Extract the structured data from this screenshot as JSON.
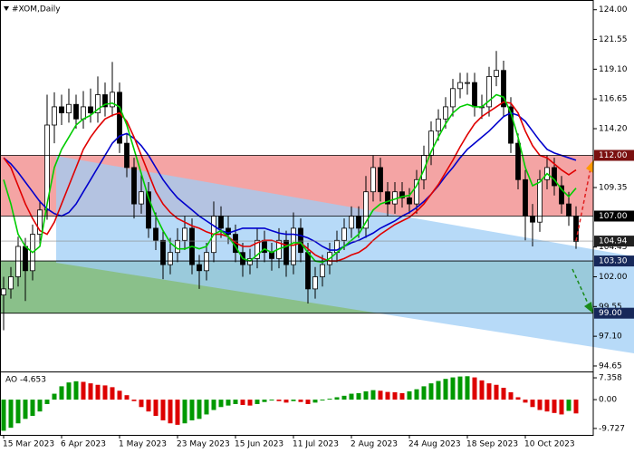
{
  "chart_data": [
    {
      "type": "candlestick",
      "title": "#XOM,Daily",
      "categories": [
        "15 Mar 2023",
        null,
        null,
        null,
        null,
        null,
        null,
        null,
        "6 Apr 2023",
        null,
        null,
        null,
        null,
        null,
        null,
        null,
        "1 May 2023",
        null,
        null,
        null,
        null,
        null,
        null,
        null,
        "23 May 2023",
        null,
        null,
        null,
        null,
        null,
        null,
        null,
        "15 Jun 2023",
        null,
        null,
        null,
        null,
        null,
        null,
        null,
        "11 Jul 2023",
        null,
        null,
        null,
        null,
        null,
        null,
        null,
        "2 Aug 2023",
        null,
        null,
        null,
        null,
        null,
        null,
        null,
        "24 Aug 2023",
        null,
        null,
        null,
        null,
        null,
        null,
        null,
        "18 Sep 2023",
        null,
        null,
        null,
        null,
        null,
        null,
        null,
        "10 Oct 2023",
        null,
        null,
        null,
        null,
        null,
        null,
        null
      ],
      "open": [
        100.5,
        101.0,
        102.0,
        104.5,
        102.5,
        105.5,
        107.5,
        114.5,
        116.0,
        115.5,
        116.2,
        115.0,
        116.0,
        115.5,
        117.0,
        116.0,
        117.2,
        113.0,
        111.0,
        108.0,
        109.0,
        106.0,
        105.0,
        103.0,
        104.0,
        105.0,
        106.0,
        103.0,
        102.5,
        104.0,
        107.0,
        106.0,
        105.5,
        104.0,
        103.0,
        103.5,
        105.0,
        104.0,
        103.5,
        105.0,
        103.0,
        106.0,
        104.0,
        101.0,
        102.0,
        103.0,
        104.0,
        105.0,
        106.0,
        107.0,
        106.0,
        109.0,
        111.0,
        109.0,
        108.0,
        109.0,
        108.5,
        108.0,
        110.0,
        112.0,
        114.0,
        115.0,
        116.0,
        117.5,
        118.0,
        118.0,
        116.0,
        116.0,
        118.5,
        119.0,
        116.0,
        113.0,
        110.0,
        107.0,
        106.5,
        110.0,
        111.0,
        109.5,
        108.0,
        107.0
      ],
      "high": [
        102.0,
        102.8,
        105.3,
        105.2,
        106.3,
        108.3,
        117.0,
        117.2,
        117.0,
        117.5,
        117.0,
        117.3,
        117.5,
        118.5,
        118.0,
        119.7,
        118.0,
        113.8,
        111.8,
        110.5,
        109.8,
        107.3,
        105.8,
        105.2,
        106.0,
        107.0,
        106.8,
        103.8,
        104.8,
        108.2,
        107.8,
        107.0,
        106.3,
        104.8,
        104.3,
        106.0,
        105.8,
        104.8,
        106.0,
        105.8,
        107.3,
        106.8,
        104.8,
        102.8,
        103.8,
        104.8,
        105.8,
        106.8,
        107.8,
        107.8,
        110.3,
        112.0,
        111.8,
        109.8,
        109.8,
        109.8,
        109.3,
        110.8,
        112.8,
        114.8,
        115.8,
        116.8,
        118.3,
        118.8,
        118.8,
        118.8,
        117.0,
        119.3,
        120.6,
        119.8,
        116.8,
        113.8,
        110.8,
        108.0,
        110.8,
        112.0,
        111.8,
        110.3,
        109.0,
        107.8
      ],
      "low": [
        97.6,
        100.2,
        101.2,
        100.0,
        101.7,
        104.7,
        106.7,
        113.0,
        114.5,
        114.7,
        114.2,
        114.2,
        114.7,
        114.7,
        115.2,
        115.2,
        112.2,
        110.2,
        106.8,
        107.2,
        105.2,
        104.2,
        101.8,
        102.2,
        103.2,
        104.2,
        102.2,
        101.0,
        101.7,
        103.2,
        105.2,
        104.7,
        103.2,
        102.0,
        102.2,
        102.7,
        103.2,
        102.5,
        102.7,
        102.0,
        102.2,
        103.2,
        99.8,
        100.2,
        101.2,
        102.2,
        103.2,
        104.2,
        105.2,
        105.2,
        105.2,
        108.2,
        108.2,
        107.0,
        107.2,
        107.7,
        107.2,
        107.2,
        109.2,
        111.2,
        113.2,
        114.2,
        115.2,
        116.7,
        117.0,
        115.2,
        115.0,
        115.2,
        117.7,
        115.2,
        112.2,
        109.2,
        105.0,
        104.5,
        105.7,
        109.2,
        108.7,
        107.2,
        106.2,
        104.3
      ],
      "close": [
        101.0,
        102.0,
        104.5,
        102.5,
        105.5,
        107.5,
        114.5,
        116.0,
        115.5,
        116.2,
        115.0,
        116.0,
        115.5,
        117.0,
        116.0,
        117.2,
        113.0,
        111.0,
        108.0,
        109.0,
        106.0,
        105.0,
        103.0,
        104.0,
        105.0,
        106.0,
        103.0,
        102.5,
        104.0,
        107.0,
        106.0,
        105.5,
        104.0,
        103.0,
        103.5,
        105.0,
        104.0,
        103.5,
        105.0,
        103.0,
        106.0,
        104.0,
        101.0,
        102.0,
        103.0,
        104.0,
        105.0,
        106.0,
        107.0,
        106.0,
        109.0,
        111.0,
        109.0,
        108.0,
        109.0,
        108.5,
        108.0,
        110.0,
        112.0,
        114.0,
        115.0,
        116.0,
        117.5,
        118.0,
        118.0,
        116.0,
        116.0,
        118.5,
        119.0,
        116.0,
        113.0,
        110.0,
        107.0,
        106.5,
        110.0,
        111.0,
        109.5,
        108.0,
        107.0,
        104.9
      ],
      "up_color": "#ffffff",
      "down_color": "#000000",
      "lines": [
        {
          "color": "#0000cc",
          "values": [
            111.8,
            111.3,
            110.6,
            109.8,
            109.0,
            108.2,
            107.6,
            107.2,
            107.0,
            107.3,
            108.0,
            109.0,
            110.0,
            111.0,
            112.0,
            113.0,
            113.6,
            113.8,
            113.4,
            112.8,
            112.0,
            111.0,
            110.0,
            109.2,
            108.5,
            108.0,
            107.5,
            107.0,
            106.6,
            106.2,
            105.8,
            105.6,
            105.8,
            106.0,
            106.0,
            106.0,
            106.0,
            105.8,
            105.6,
            105.5,
            105.5,
            105.4,
            105.2,
            104.9,
            104.5,
            104.2,
            104.2,
            104.5,
            104.8,
            105.0,
            105.3,
            105.6,
            106.0,
            106.3,
            106.6,
            107.0,
            107.3,
            107.7,
            108.2,
            108.8,
            109.5,
            110.3,
            111.0,
            111.8,
            112.5,
            113.0,
            113.5,
            114.0,
            114.6,
            115.2,
            115.5,
            115.3,
            114.8,
            114.0,
            113.2,
            112.5,
            112.2,
            112.0,
            111.8,
            111.6
          ]
        },
        {
          "color": "#e00000",
          "values": [
            111.8,
            111.0,
            109.5,
            108.0,
            106.8,
            105.8,
            105.5,
            106.5,
            108.0,
            109.5,
            111.0,
            112.5,
            113.5,
            114.3,
            115.0,
            115.3,
            115.5,
            114.8,
            113.5,
            112.0,
            110.5,
            109.0,
            108.0,
            107.3,
            106.8,
            106.5,
            106.2,
            106.0,
            105.7,
            105.5,
            105.5,
            105.3,
            104.8,
            104.5,
            104.5,
            104.8,
            105.0,
            105.0,
            104.8,
            104.6,
            104.6,
            104.8,
            104.3,
            103.8,
            103.5,
            103.3,
            103.3,
            103.5,
            103.8,
            104.0,
            104.4,
            105.0,
            105.5,
            105.9,
            106.3,
            106.6,
            106.9,
            107.4,
            108.0,
            108.8,
            109.6,
            110.6,
            111.6,
            112.7,
            113.7,
            114.6,
            115.2,
            115.6,
            116.0,
            116.4,
            116.3,
            115.5,
            114.0,
            112.8,
            112.0,
            111.8,
            111.3,
            110.8,
            110.4,
            110.8
          ]
        },
        {
          "color": "#00cc00",
          "values": [
            110.0,
            108.0,
            105.5,
            104.5,
            104.0,
            104.5,
            108.0,
            111.0,
            112.5,
            113.5,
            114.5,
            115.0,
            115.3,
            115.8,
            116.2,
            116.3,
            116.0,
            114.5,
            112.5,
            110.5,
            108.5,
            107.0,
            105.8,
            104.8,
            104.3,
            104.3,
            104.5,
            104.3,
            104.5,
            105.5,
            105.8,
            105.3,
            104.5,
            103.5,
            103.3,
            103.8,
            104.3,
            104.0,
            104.3,
            104.5,
            104.8,
            104.8,
            104.0,
            103.3,
            103.2,
            103.5,
            104.0,
            104.5,
            105.0,
            105.5,
            106.5,
            107.5,
            108.0,
            108.2,
            108.4,
            108.6,
            108.7,
            109.5,
            110.8,
            112.3,
            113.5,
            114.6,
            115.5,
            116.0,
            116.2,
            116.0,
            116.0,
            116.5,
            117.0,
            116.8,
            115.5,
            113.5,
            111.0,
            109.5,
            109.8,
            110.5,
            110.0,
            109.2,
            108.6,
            109.3
          ]
        }
      ],
      "zones": [
        {
          "from": 107,
          "to": 112,
          "color": "#f4a4a4"
        },
        {
          "from": 99,
          "to": 103.3,
          "color": "#3c963c"
        }
      ],
      "levels": [
        {
          "value": 112,
          "label": "112.00",
          "color": "#7a1010"
        },
        {
          "value": 107,
          "label": "107.00",
          "color": "#000000"
        },
        {
          "value": 103.3,
          "label": "103.30",
          "color": "#16285a"
        },
        {
          "value": 99,
          "label": "99.00",
          "color": "#16285a"
        }
      ],
      "last_price": {
        "value": 104.94,
        "label": "104.94",
        "color": "#202020"
      },
      "ylim": [
        94.2,
        124.8
      ],
      "yticks": [
        {
          "value": 124,
          "label": "124.00"
        },
        121.55,
        {
          "value": 119.1,
          "label": "119.10"
        },
        116.65,
        {
          "value": 114.2,
          "label": "114.20"
        },
        109.35,
        104.45,
        {
          "value": 102,
          "label": "102.00"
        },
        99.55,
        {
          "value": 97.1,
          "label": "97.10"
        },
        94.65
      ]
    },
    {
      "type": "bar",
      "title": "AO -4.653",
      "values": [
        -10.5,
        -9.5,
        -8.0,
        -6.5,
        -5.5,
        -4.0,
        -1.5,
        2.0,
        4.5,
        5.8,
        6.2,
        6.0,
        5.5,
        5.0,
        4.8,
        4.2,
        3.0,
        1.5,
        -0.5,
        -2.5,
        -4.0,
        -5.5,
        -7.0,
        -8.0,
        -8.5,
        -8.0,
        -7.0,
        -6.5,
        -5.0,
        -3.5,
        -2.5,
        -2.0,
        -1.5,
        -1.8,
        -2.0,
        -1.5,
        -0.8,
        -0.3,
        -0.5,
        -1.0,
        -0.5,
        -0.8,
        -1.5,
        -1.0,
        -0.3,
        0.3,
        0.8,
        1.3,
        2.0,
        2.2,
        2.8,
        3.2,
        3.0,
        2.6,
        2.5,
        2.2,
        2.8,
        3.5,
        4.5,
        5.5,
        6.3,
        7.0,
        7.5,
        7.8,
        7.9,
        7.5,
        6.5,
        5.5,
        5.0,
        4.0,
        2.5,
        0.8,
        -1.0,
        -2.5,
        -3.5,
        -4.0,
        -4.5,
        -5.0,
        -3.8,
        -4.653
      ],
      "up_color": "#009900",
      "down_color": "#dd0000",
      "ylim": [
        -11.9,
        8.9
      ],
      "yticks": [
        7.358,
        {
          "value": 0,
          "label": "0.00"
        },
        -9.727
      ]
    }
  ]
}
